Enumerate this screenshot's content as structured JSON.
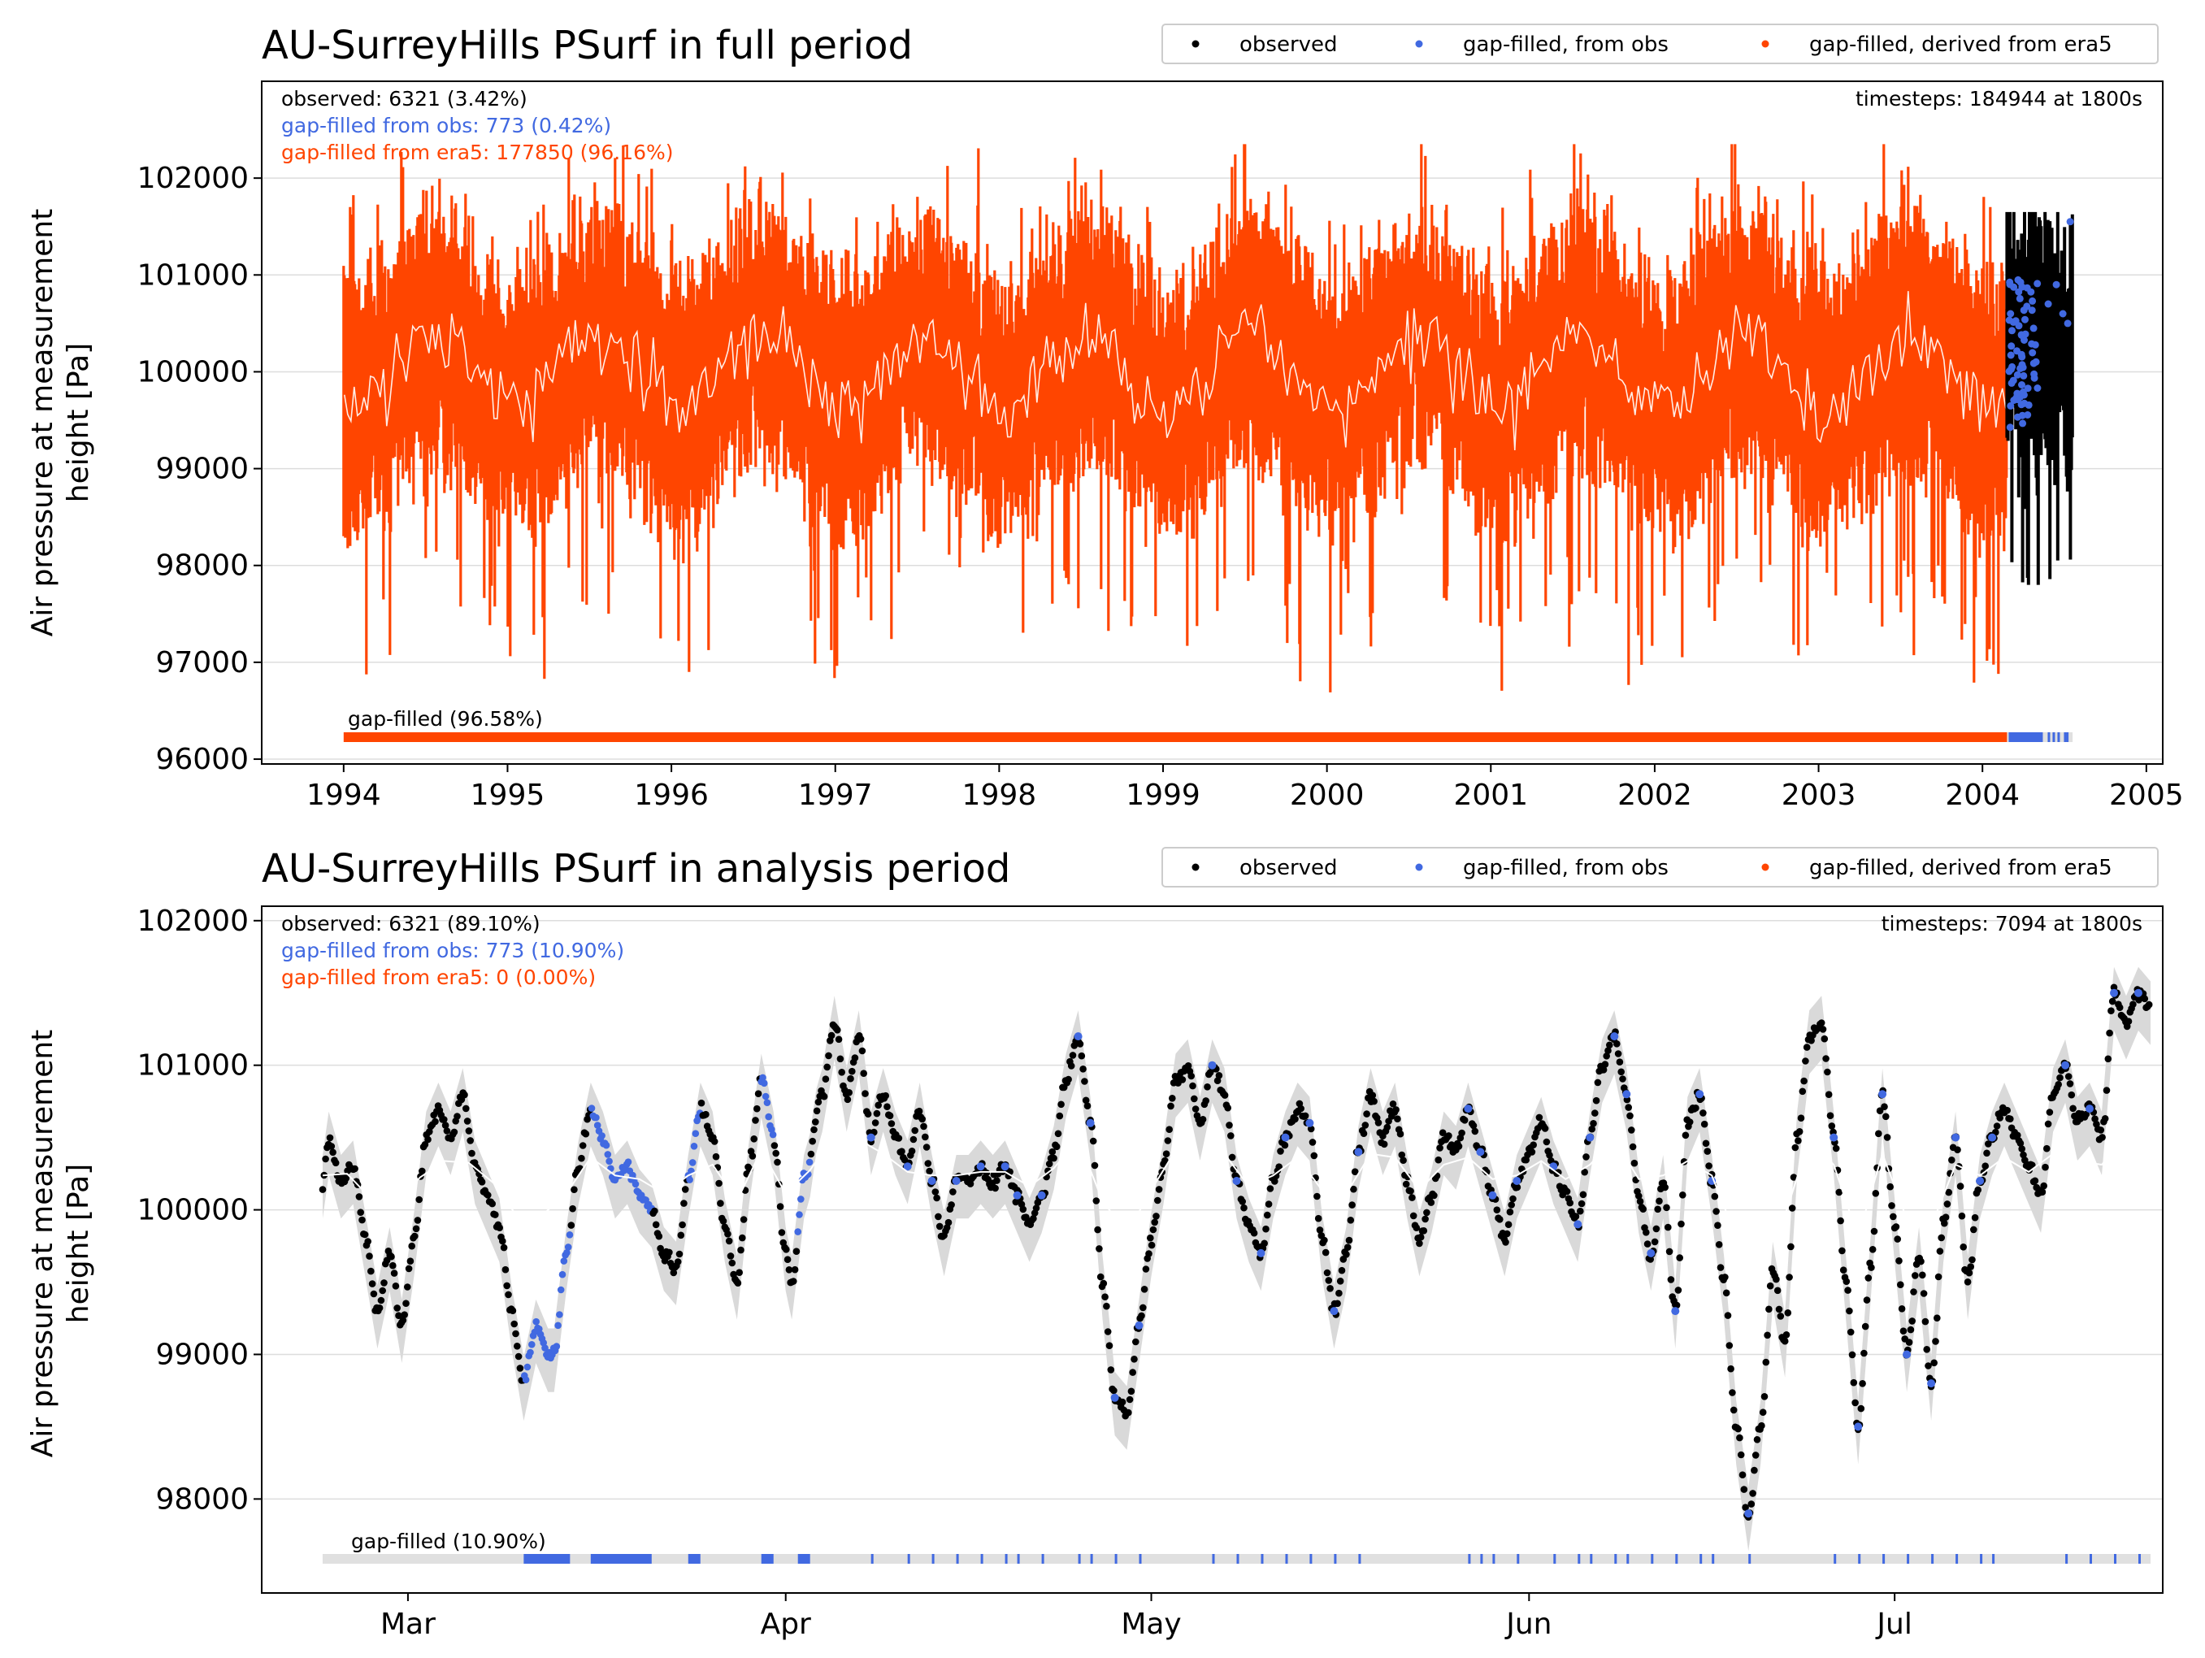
{
  "colors": {
    "observed": "#000000",
    "gapfill_obs": "#4169e1",
    "gapfill_era5": "#ff4500",
    "grid": "#dddddd",
    "smooth": "#ffffff",
    "band": "#d9d9d9"
  },
  "legend": {
    "observed": "observed",
    "gapfill_obs": "gap-filled, from obs",
    "gapfill_era5": "gap-filled, derived from era5"
  },
  "chart_data": [
    {
      "type": "scatter",
      "title": "AU-SurreyHills PSurf in full period",
      "ylabel_line1": "Air pressure at measurement",
      "ylabel_line2": "height [Pa]",
      "xlim": [
        1993.5,
        2005.1
      ],
      "ylim": [
        95950,
        103000
      ],
      "x_ticks": [
        "1994",
        "1995",
        "1996",
        "1997",
        "1998",
        "1999",
        "2000",
        "2001",
        "2002",
        "2003",
        "2004",
        "2005"
      ],
      "y_ticks": [
        96000,
        97000,
        98000,
        99000,
        100000,
        101000,
        102000
      ],
      "grid": "horizontal",
      "legend_placement": "upper-right above plot",
      "stats": {
        "observed": "observed: 6321 (3.42%)",
        "gapfill_obs": "gap-filled from obs: 773 (0.42%)",
        "gapfill_era5": "gap-filled from era5: 177850 (96.16%)",
        "timesteps": "timesteps: 184944 at 1800s"
      },
      "gap_label": "gap-filled (96.58%)",
      "data_range": {
        "start": 1994.0,
        "era5_end": 2004.15,
        "end": 2004.55
      },
      "series": [
        {
          "name": "gap-filled, derived from era5",
          "x_range": [
            1994.0,
            2004.15
          ],
          "mean": 100000,
          "min": 96650,
          "max": 102350
        },
        {
          "name": "gap-filled, from obs",
          "x_range": [
            2004.15,
            2004.55
          ],
          "mean": 100050,
          "min": 99200,
          "max": 101550
        },
        {
          "name": "observed",
          "x_range": [
            2004.15,
            2004.55
          ],
          "mean": 100000,
          "min": 97800,
          "max": 101650
        }
      ]
    },
    {
      "type": "scatter",
      "title": "AU-SurreyHills PSurf in analysis period",
      "ylabel_line1": "Air pressure at measurement",
      "ylabel_line2": "height [Pa]",
      "xlim": [
        -12,
        144
      ],
      "ylim": [
        97350,
        102100
      ],
      "x_ticks": [
        {
          "label": "Mar",
          "day": 0
        },
        {
          "label": "Apr",
          "day": 31
        },
        {
          "label": "May",
          "day": 61
        },
        {
          "label": "Jun",
          "day": 92
        },
        {
          "label": "Jul",
          "day": 122
        }
      ],
      "y_ticks": [
        98000,
        99000,
        100000,
        101000,
        102000
      ],
      "grid": "horizontal",
      "legend_placement": "upper-right above plot",
      "stats": {
        "observed": "observed: 6321 (89.10%)",
        "gapfill_obs": "gap-filled from obs: 773 (10.90%)",
        "gapfill_era5": "gap-filled from era5: 0 (0.00%)",
        "timesteps": "timesteps: 7094 at 1800s"
      },
      "gap_label": "gap-filled (10.90%)",
      "series_points": [
        [
          -7,
          100200
        ],
        [
          -6.5,
          100500
        ],
        [
          -5.5,
          100200
        ],
        [
          -4.5,
          100300
        ],
        [
          -3.5,
          99800
        ],
        [
          -2.5,
          99300
        ],
        [
          -1.5,
          99700
        ],
        [
          -0.5,
          99200
        ],
        [
          0.5,
          99800
        ],
        [
          1.5,
          100500
        ],
        [
          2.5,
          100700
        ],
        [
          3.5,
          100500
        ],
        [
          4.5,
          100800
        ],
        [
          5.5,
          100300
        ],
        [
          6.5,
          100100
        ],
        [
          7.5,
          99900
        ],
        [
          8.5,
          99300
        ],
        [
          9.5,
          98800
        ],
        [
          10.5,
          99200
        ],
        [
          11.5,
          99000
        ],
        [
          12,
          99000
        ],
        [
          13,
          99700
        ],
        [
          14,
          100300
        ],
        [
          15,
          100700
        ],
        [
          16,
          100500
        ],
        [
          17,
          100200
        ],
        [
          18,
          100300
        ],
        [
          19,
          100100
        ],
        [
          20,
          100000
        ],
        [
          21,
          99700
        ],
        [
          22,
          99600
        ],
        [
          23,
          100200
        ],
        [
          24,
          100700
        ],
        [
          25,
          100500
        ],
        [
          26,
          99900
        ],
        [
          27,
          99500
        ],
        [
          28,
          100300
        ],
        [
          29,
          100900
        ],
        [
          30,
          100500
        ],
        [
          31,
          99700
        ],
        [
          31.5,
          99500
        ],
        [
          32.5,
          100200
        ],
        [
          34,
          100800
        ],
        [
          35,
          101300
        ],
        [
          36,
          100800
        ],
        [
          37,
          101200
        ],
        [
          38,
          100500
        ],
        [
          39,
          100800
        ],
        [
          40,
          100500
        ],
        [
          41,
          100300
        ],
        [
          42,
          100700
        ],
        [
          43,
          100200
        ],
        [
          44,
          99800
        ],
        [
          45,
          100200
        ],
        [
          46,
          100200
        ],
        [
          47,
          100300
        ],
        [
          48,
          100200
        ],
        [
          49,
          100300
        ],
        [
          50,
          100100
        ],
        [
          51,
          99900
        ],
        [
          52,
          100100
        ],
        [
          53,
          100400
        ],
        [
          54,
          100900
        ],
        [
          55,
          101200
        ],
        [
          56,
          100600
        ],
        [
          57,
          99500
        ],
        [
          58,
          98700
        ],
        [
          59,
          98600
        ],
        [
          60,
          99200
        ],
        [
          61,
          99800
        ],
        [
          62,
          100300
        ],
        [
          63,
          100900
        ],
        [
          64,
          101000
        ],
        [
          65,
          100600
        ],
        [
          66,
          101000
        ],
        [
          67,
          100800
        ],
        [
          68,
          100200
        ],
        [
          69,
          99900
        ],
        [
          70,
          99700
        ],
        [
          71,
          100200
        ],
        [
          72,
          100500
        ],
        [
          73,
          100700
        ],
        [
          74,
          100600
        ],
        [
          75,
          99800
        ],
        [
          76,
          99300
        ],
        [
          77,
          99700
        ],
        [
          78,
          100400
        ],
        [
          79,
          100800
        ],
        [
          80,
          100500
        ],
        [
          81,
          100700
        ],
        [
          82,
          100200
        ],
        [
          83,
          99800
        ],
        [
          84,
          100100
        ],
        [
          85,
          100500
        ],
        [
          86,
          100400
        ],
        [
          87,
          100700
        ],
        [
          88,
          100400
        ],
        [
          89,
          100100
        ],
        [
          90,
          99800
        ],
        [
          91,
          100200
        ],
        [
          92,
          100400
        ],
        [
          93,
          100600
        ],
        [
          94,
          100300
        ],
        [
          95,
          100100
        ],
        [
          96,
          99900
        ],
        [
          97,
          100500
        ],
        [
          98,
          101000
        ],
        [
          99,
          101200
        ],
        [
          100,
          100800
        ],
        [
          101,
          100100
        ],
        [
          102,
          99700
        ],
        [
          103,
          100200
        ],
        [
          104,
          99300
        ],
        [
          105,
          100600
        ],
        [
          106,
          100800
        ],
        [
          107,
          100200
        ],
        [
          108,
          99500
        ],
        [
          109,
          98500
        ],
        [
          110,
          97900
        ],
        [
          111,
          98500
        ],
        [
          112,
          99600
        ],
        [
          113,
          99100
        ],
        [
          114,
          100500
        ],
        [
          115,
          101200
        ],
        [
          116,
          101300
        ],
        [
          117,
          100500
        ],
        [
          118,
          99500
        ],
        [
          119,
          98500
        ],
        [
          120,
          99600
        ],
        [
          121,
          100800
        ],
        [
          122,
          99900
        ],
        [
          123,
          99000
        ],
        [
          124,
          99700
        ],
        [
          125,
          98800
        ],
        [
          126,
          99900
        ],
        [
          127,
          100500
        ],
        [
          128,
          99500
        ],
        [
          129,
          100200
        ],
        [
          130,
          100500
        ],
        [
          131,
          100700
        ],
        [
          132,
          100500
        ],
        [
          133,
          100300
        ],
        [
          134,
          100100
        ],
        [
          135,
          100800
        ],
        [
          136,
          101000
        ],
        [
          137,
          100600
        ],
        [
          138,
          100700
        ],
        [
          139,
          100500
        ],
        [
          140,
          101500
        ],
        [
          141,
          101300
        ],
        [
          142,
          101500
        ],
        [
          143,
          101400
        ]
      ],
      "obs_gap_intervals": [
        [
          9.5,
          13.3
        ],
        [
          15,
          20
        ],
        [
          23,
          24
        ],
        [
          29,
          30
        ],
        [
          32,
          33
        ]
      ],
      "gap_ticks": [
        38,
        41,
        43,
        45,
        47,
        49,
        50,
        52,
        55,
        56,
        58,
        60,
        66,
        68,
        70,
        72,
        74,
        76,
        78,
        87,
        88,
        89,
        91,
        94,
        96,
        97,
        99,
        100,
        102,
        104,
        106,
        107,
        110,
        117,
        119,
        121,
        123,
        125,
        127,
        129,
        130,
        136,
        138,
        140,
        142
      ],
      "data_range": {
        "start": -7,
        "end": 143
      }
    }
  ]
}
